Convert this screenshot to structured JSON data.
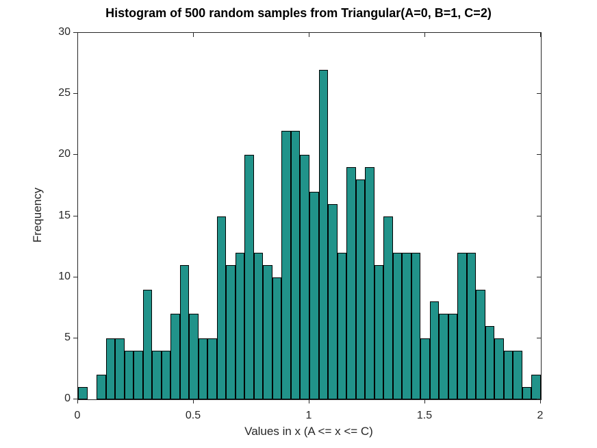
{
  "chart_data": {
    "type": "bar",
    "subtype": "histogram",
    "title": "Histogram of 500 random samples from Triangular(A=0, B=1, C=2)",
    "xlabel": "Values in x (A <= x <= C)",
    "ylabel": "Frequency",
    "total_samples": 500,
    "bin_start": 0,
    "bin_width": 0.04,
    "frequencies": [
      1,
      0,
      2,
      5,
      5,
      4,
      4,
      9,
      4,
      4,
      7,
      11,
      7,
      5,
      5,
      15,
      11,
      12,
      20,
      12,
      11,
      10,
      22,
      22,
      20,
      17,
      27,
      16,
      12,
      19,
      18,
      19,
      11,
      15,
      12,
      12,
      12,
      5,
      8,
      7,
      7,
      12,
      12,
      9,
      6,
      5,
      4,
      4,
      1,
      2
    ],
    "xlim": [
      0,
      2
    ],
    "ylim": [
      0,
      30
    ],
    "xticks": [
      0,
      0.5,
      1,
      1.5,
      2
    ],
    "xtick_labels": [
      "0",
      "0.5",
      "1",
      "1.5",
      "2"
    ],
    "yticks": [
      0,
      5,
      10,
      15,
      20,
      25,
      30
    ],
    "ytick_labels": [
      "0",
      "5",
      "10",
      "15",
      "20",
      "25",
      "30"
    ],
    "grid": false,
    "legend": null,
    "colors": {
      "bar_fill": "#21938A",
      "bar_edge": "#000000",
      "axis": "#262626",
      "title_text": "#000000",
      "background": "#ffffff"
    }
  }
}
